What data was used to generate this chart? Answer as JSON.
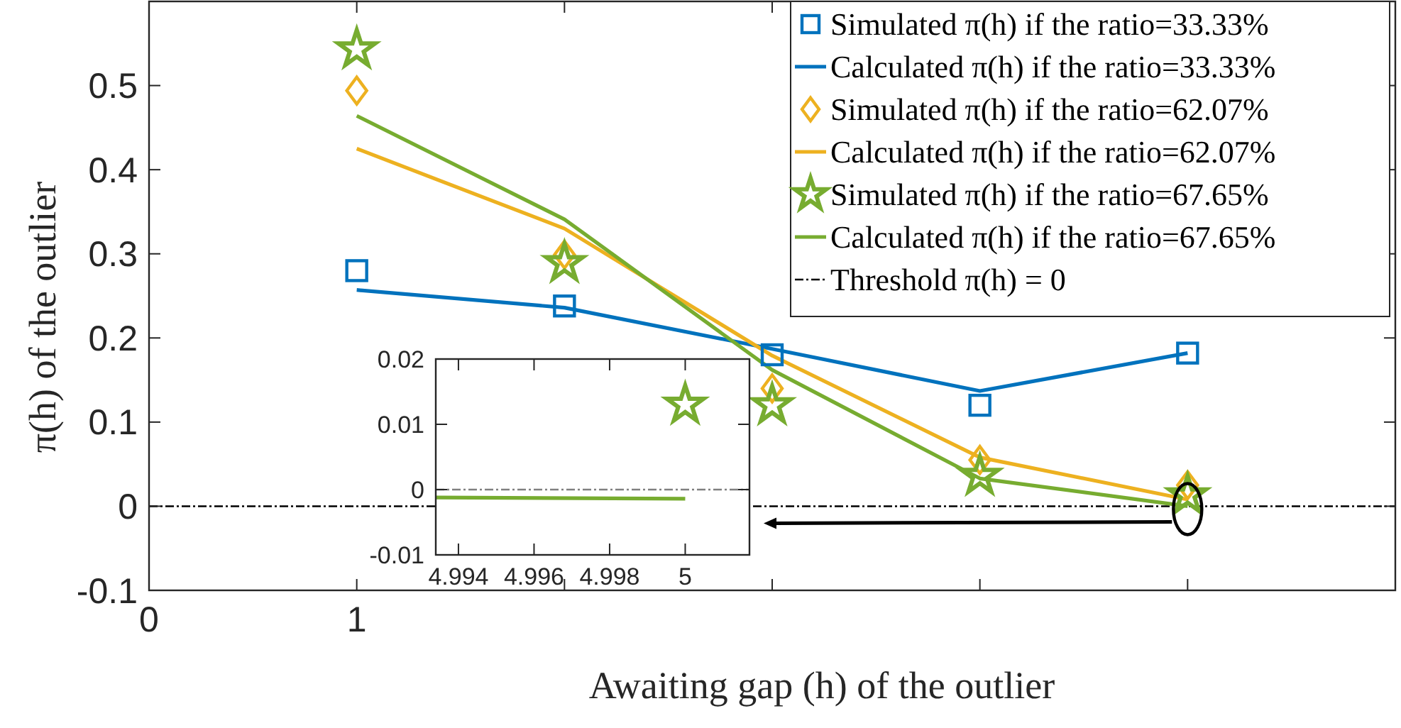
{
  "chart_data": [
    {
      "type": "line",
      "xlabel": "Awaiting gap (h) of the outlier",
      "ylabel": "π(h) of the outlier",
      "x": [
        1,
        2,
        3,
        4,
        5
      ],
      "xlim": [
        0,
        6
      ],
      "xticks": [
        0,
        1,
        {
          "value": 2,
          "label": null
        },
        {
          "value": 3,
          "label": null
        },
        {
          "value": 4,
          "label": null
        },
        {
          "value": 5,
          "label": null
        },
        {
          "value": 6,
          "label": null
        }
      ],
      "ylim": [
        -0.1,
        0.6
      ],
      "yticks": [
        -0.1,
        0,
        0.1,
        0.2,
        0.3,
        0.4,
        0.5
      ],
      "series": [
        {
          "name": "Simulated π(h) if the ratio=33.33%",
          "type": "scatter",
          "marker": "square",
          "color": "#0072bd",
          "values": [
            0.28,
            0.238,
            0.18,
            0.12,
            0.182
          ]
        },
        {
          "name": "Calculated π(h) if the ratio=33.33%",
          "marker": "none",
          "color": "#0072bd",
          "values": [
            0.257,
            0.236,
            0.187,
            0.137,
            0.182
          ]
        },
        {
          "name": "Simulated π(h) if the ratio=62.07%",
          "type": "scatter",
          "marker": "diamond",
          "color": "#edb120",
          "values": [
            0.494,
            0.299,
            0.14,
            0.055,
            0.025
          ]
        },
        {
          "name": "Calculated π(h) if the ratio=62.07%",
          "marker": "none",
          "color": "#edb120",
          "values": [
            0.425,
            0.33,
            0.179,
            0.058,
            0.008
          ]
        },
        {
          "name": "Simulated π(h) if the ratio=67.65%",
          "type": "scatter",
          "marker": "star",
          "color": "#77ac30",
          "values": [
            0.543,
            0.289,
            0.12,
            0.036,
            0.013
          ]
        },
        {
          "name": "Calculated π(h) if the ratio=67.65%",
          "marker": "none",
          "color": "#77ac30",
          "values": [
            0.464,
            0.341,
            0.162,
            0.033,
            0
          ]
        }
      ],
      "ref_lines": [
        {
          "axis": "y",
          "value": 0,
          "label": "Threshold π(h) = 0",
          "color": "#000000",
          "line_style": "dashed"
        }
      ],
      "legend": "top right"
    },
    {
      "type": "line",
      "x": [
        4.9934,
        5
      ],
      "xlim": [
        4.9934,
        5.0017
      ],
      "xticks": [
        4.994,
        4.996,
        4.998,
        5
      ],
      "ylim": [
        -0.01,
        0.02
      ],
      "yticks": [
        -0.01,
        0,
        0.01,
        0.02
      ],
      "series": [
        {
          "type": "scatter",
          "marker": "star",
          "color": "#77ac30",
          "values": [
            null,
            0.013
          ]
        },
        {
          "marker": "none",
          "color": "#77ac30",
          "values": [
            -0.0012,
            -0.0014
          ]
        }
      ],
      "ref_lines": [
        {
          "axis": "y",
          "value": 0,
          "color": "#808080",
          "line_style": "dashed"
        }
      ]
    }
  ]
}
